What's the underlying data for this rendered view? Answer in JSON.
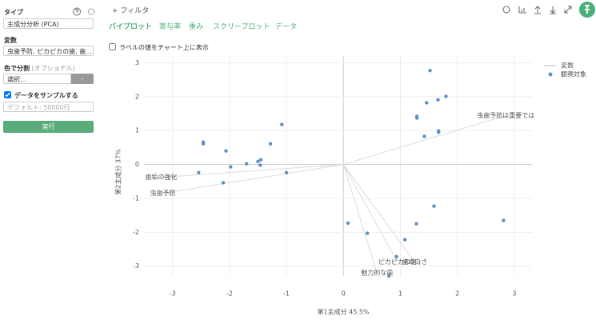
{
  "sidebar": {
    "type_label": "タイプ",
    "type_select": "主成分分析 (PCA)",
    "variables_label": "変数",
    "variables_input": "虫歯予防, ピカピカの歯, 歯…",
    "color_label": "色で分割",
    "color_optional": "(オプショナル)",
    "color_select": "選択...",
    "color_button": "-",
    "sample_label": "データをサンプルする",
    "sample_placeholder": "デフォルト: 50000行",
    "run_button": "実行"
  },
  "toolbar": {
    "filter": "+ フィルタ"
  },
  "tabs": [
    "バイプロット",
    "寄与率",
    "重み",
    "スクリープロット",
    "データ"
  ],
  "show_labels_option": "ラベルの値をチャート上に表示",
  "chart_data": {
    "type": "biplot",
    "x_label": "第1主成分 45.5%",
    "y_label": "第2主成分 37%",
    "xlim": [
      -3.5,
      3.31
    ],
    "ylim": [
      -3.29,
      3.2
    ],
    "xticks": [
      -3,
      -2,
      -1,
      0,
      1,
      2,
      3
    ],
    "yticks": [
      -3,
      -2,
      -1,
      0,
      1,
      2,
      3
    ],
    "series": [
      {
        "name": "変数",
        "color": "#dcdcdc",
        "labels": [
          "歯垢の強化",
          "虫歯予防",
          "虫歯予防は重要では",
          "ピカピカの歯",
          "歯の白さ",
          "魅力的な歯"
        ],
        "x": [
          -3.2,
          -3.17,
          2.85,
          0.95,
          1.25,
          0.59
        ],
        "y": [
          -0.38,
          -0.85,
          1.44,
          -2.88,
          -2.88,
          -3.19
        ]
      },
      {
        "name": "観察対象",
        "color": "#5b8fc7",
        "x": [
          1.52,
          1.8,
          1.66,
          1.46,
          1.29,
          1.29,
          1.67,
          1.67,
          1.42,
          -1.08,
          -2.46,
          -2.46,
          -2.06,
          -1.28,
          -1.45,
          -1.5,
          -1.7,
          -1.98,
          -1.46,
          -2.54,
          -1.0,
          -2.11,
          2.81,
          1.59,
          1.28,
          0.08,
          0.42,
          1.08,
          0.93,
          0.8
        ],
        "y": [
          2.77,
          2.01,
          1.91,
          1.82,
          1.42,
          1.37,
          0.99,
          0.95,
          0.83,
          1.18,
          0.66,
          0.61,
          0.4,
          0.61,
          0.14,
          0.09,
          0.02,
          -0.07,
          -0.02,
          -0.24,
          -0.24,
          -0.54,
          -1.65,
          -1.23,
          -1.75,
          -1.73,
          -2.03,
          -2.22,
          -2.72,
          -3.29
        ]
      }
    ]
  }
}
